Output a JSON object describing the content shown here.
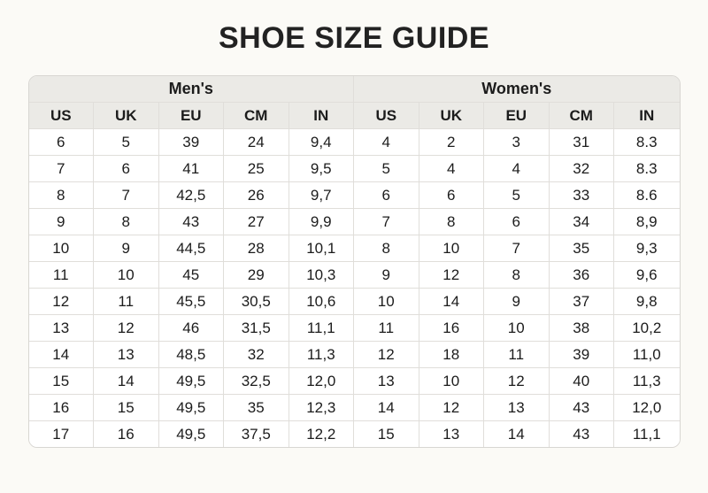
{
  "title": "SHOE SIZE GUIDE",
  "colors": {
    "page_background": "#fbfaf6",
    "header_background": "#ebeae6",
    "grid_border": "#e0deda",
    "text": "#1c1c1c"
  },
  "chart_data": {
    "type": "table",
    "title": "SHOE SIZE GUIDE",
    "groups": [
      "Men's",
      "Women's"
    ],
    "columns": [
      "US",
      "UK",
      "EU",
      "CM",
      "IN"
    ],
    "mens": [
      [
        "6",
        "5",
        "39",
        "24",
        "9,4"
      ],
      [
        "7",
        "6",
        "41",
        "25",
        "9,5"
      ],
      [
        "8",
        "7",
        "42,5",
        "26",
        "9,7"
      ],
      [
        "9",
        "8",
        "43",
        "27",
        "9,9"
      ],
      [
        "10",
        "9",
        "44,5",
        "28",
        "10,1"
      ],
      [
        "11",
        "10",
        "45",
        "29",
        "10,3"
      ],
      [
        "12",
        "11",
        "45,5",
        "30,5",
        "10,6"
      ],
      [
        "13",
        "12",
        "46",
        "31,5",
        "11,1"
      ],
      [
        "14",
        "13",
        "48,5",
        "32",
        "11,3"
      ],
      [
        "15",
        "14",
        "49,5",
        "32,5",
        "12,0"
      ],
      [
        "16",
        "15",
        "49,5",
        "35",
        "12,3"
      ],
      [
        "17",
        "16",
        "49,5",
        "37,5",
        "12,2"
      ]
    ],
    "womens": [
      [
        "4",
        "2",
        "3",
        "31",
        "8.3"
      ],
      [
        "5",
        "4",
        "4",
        "32",
        "8.3"
      ],
      [
        "6",
        "6",
        "5",
        "33",
        "8.6"
      ],
      [
        "7",
        "8",
        "6",
        "34",
        "8,9"
      ],
      [
        "8",
        "10",
        "7",
        "35",
        "9,3"
      ],
      [
        "9",
        "12",
        "8",
        "36",
        "9,6"
      ],
      [
        "10",
        "14",
        "9",
        "37",
        "9,8"
      ],
      [
        "11",
        "16",
        "10",
        "38",
        "10,2"
      ],
      [
        "12",
        "18",
        "11",
        "39",
        "11,0"
      ],
      [
        "13",
        "10",
        "12",
        "40",
        "11,3"
      ],
      [
        "14",
        "12",
        "13",
        "43",
        "12,0"
      ],
      [
        "15",
        "13",
        "14",
        "43",
        "11,1"
      ]
    ]
  }
}
